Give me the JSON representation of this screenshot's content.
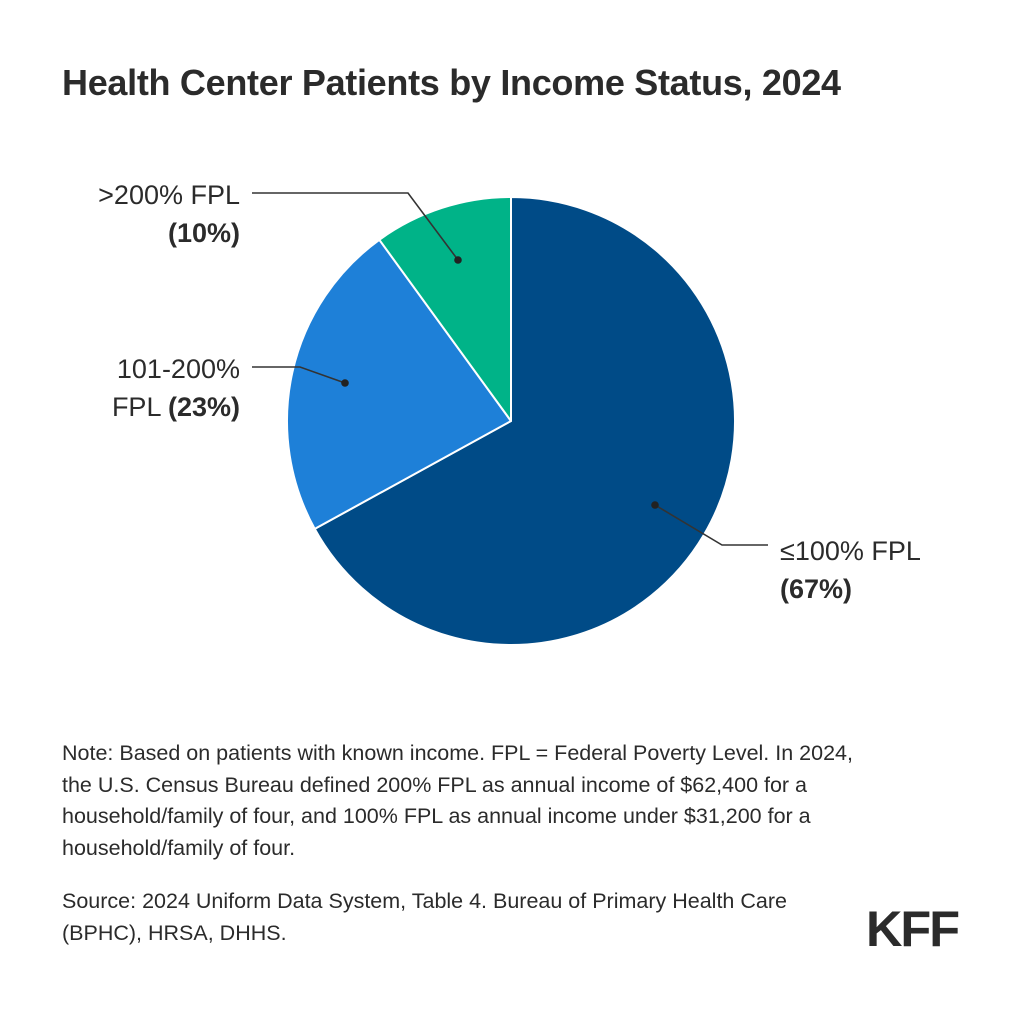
{
  "chart_data": {
    "type": "pie",
    "title": "Health Center Patients by Income Status, 2024",
    "slices": [
      {
        "label_lines": [
          "≤100% FPL",
          ""
        ],
        "pct_label": "(67%)",
        "value": 67,
        "color": "#004b87"
      },
      {
        "label_lines": [
          "101-200%",
          "FPL "
        ],
        "pct_label": "(23%)",
        "value": 23,
        "color": "#1e80d8"
      },
      {
        "label_lines": [
          ">200% FPL",
          ""
        ],
        "pct_label": "(10%)",
        "value": 10,
        "color": "#00b388"
      }
    ]
  },
  "footer": {
    "note": "Note: Based on patients with known income. FPL = Federal Poverty Level. In 2024, the U.S. Census Bureau defined 200% FPL as annual income of $62,400 for a household/family of four, and 100% FPL as annual income under $31,200 for a household/family of four.",
    "source": "Source: 2024 Uniform Data System, Table 4. Bureau of Primary Health Care (BPHC), HRSA, DHHS."
  },
  "logo": {
    "text": "KFF",
    "color": "#2b2b2b"
  }
}
